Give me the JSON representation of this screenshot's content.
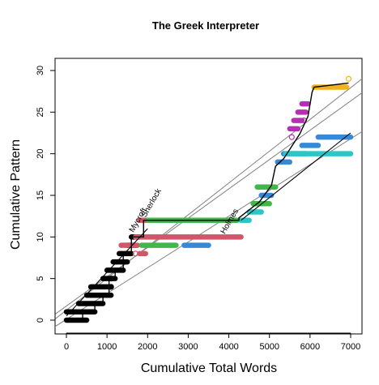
{
  "chart_data": {
    "type": "scatter",
    "title": "The Greek Interpreter",
    "xlabel": "Cumulative Total Words",
    "ylabel": "Cumulative Pattern",
    "xlim": [
      0,
      7000
    ],
    "ylim": [
      0,
      30
    ],
    "xticks": [
      0,
      1000,
      2000,
      3000,
      4000,
      5000,
      6000,
      7000
    ],
    "yticks": [
      0,
      5,
      10,
      15,
      20,
      25,
      30
    ],
    "grid": false,
    "legend": "none",
    "annotations": [
      {
        "text": "Mycroft",
        "x": 1650,
        "y": 10.5
      },
      {
        "text": "Sherlock",
        "x": 1950,
        "y": 12.3
      },
      {
        "text": "Holmes",
        "x": 3900,
        "y": 10.3
      }
    ],
    "series": [
      {
        "color": "#000000",
        "segments": [
          [
            0,
            0,
            500,
            0
          ],
          [
            0,
            1,
            700,
            1
          ],
          [
            300,
            2,
            900,
            2
          ],
          [
            500,
            3,
            1100,
            3
          ],
          [
            600,
            4,
            1100,
            4
          ],
          [
            900,
            5,
            1200,
            5
          ],
          [
            1000,
            6,
            1400,
            6
          ],
          [
            1150,
            7,
            1500,
            7
          ],
          [
            1300,
            8,
            1600,
            8
          ],
          [
            1500,
            9,
            1700,
            9
          ],
          [
            1600,
            10,
            1800,
            10
          ]
        ]
      },
      {
        "color": "#d2566a",
        "segments": [
          [
            1350,
            9,
            1750,
            9
          ],
          [
            1700,
            10,
            4300,
            10
          ],
          [
            1800,
            12,
            2000,
            12
          ],
          [
            1800,
            8,
            1950,
            8
          ]
        ]
      },
      {
        "color": "#41b649",
        "segments": [
          [
            1850,
            9,
            2700,
            9
          ],
          [
            2000,
            12,
            4200,
            12
          ],
          [
            4600,
            14,
            5000,
            14
          ],
          [
            4700,
            16,
            5150,
            16
          ]
        ]
      },
      {
        "color": "#3589d6",
        "segments": [
          [
            2900,
            9,
            3500,
            9
          ],
          [
            4800,
            15,
            5050,
            15
          ],
          [
            5200,
            19,
            5500,
            19
          ],
          [
            5350,
            20,
            5900,
            20
          ],
          [
            5800,
            21,
            6200,
            21
          ],
          [
            6200,
            22,
            7000,
            22
          ]
        ]
      },
      {
        "color": "#2ac7c7",
        "segments": [
          [
            4300,
            12,
            4500,
            12
          ],
          [
            4500,
            13,
            4800,
            13
          ],
          [
            5400,
            20,
            7000,
            20
          ]
        ]
      },
      {
        "color": "#b72fb4",
        "segments": [
          [
            5500,
            23,
            5700,
            23
          ],
          [
            5600,
            24,
            5800,
            24
          ],
          [
            5700,
            25,
            5900,
            25
          ],
          [
            5800,
            26,
            5950,
            26
          ]
        ]
      },
      {
        "color": "#f2b21c",
        "segments": [
          [
            6100,
            28,
            6900,
            28
          ]
        ]
      }
    ],
    "open_points": [
      {
        "x": 1100,
        "y": 4,
        "color": "#000000"
      },
      {
        "x": 1100,
        "y": 5,
        "color": "#000000"
      },
      {
        "x": 1700,
        "y": 8,
        "color": "#d2566a"
      },
      {
        "x": 5550,
        "y": 22,
        "color": "#b72fb4"
      },
      {
        "x": 5850,
        "y": 24,
        "color": "#b72fb4"
      },
      {
        "x": 6950,
        "y": 29,
        "color": "#f2b21c"
      }
    ],
    "step_line": [
      [
        0,
        0
      ],
      [
        400,
        0
      ],
      [
        400,
        1
      ],
      [
        700,
        1
      ],
      [
        700,
        2
      ],
      [
        900,
        2
      ],
      [
        900,
        3
      ],
      [
        1050,
        3
      ],
      [
        1050,
        5
      ],
      [
        1200,
        5
      ],
      [
        1200,
        6
      ],
      [
        1400,
        6
      ],
      [
        1400,
        8
      ],
      [
        1600,
        8
      ],
      [
        1600,
        10
      ],
      [
        1900,
        10
      ],
      [
        1900,
        12
      ],
      [
        4250,
        12
      ],
      [
        4250,
        12.3
      ],
      [
        4750,
        14.2
      ],
      [
        5050,
        16.2
      ],
      [
        5150,
        18.5
      ],
      [
        5350,
        19.4
      ],
      [
        5750,
        22.4
      ],
      [
        5950,
        24.5
      ],
      [
        6050,
        27.4
      ],
      [
        6100,
        28
      ],
      [
        6950,
        28.5
      ]
    ],
    "post_fit_line": [
      [
        4300,
        12
      ],
      [
        7000,
        22.5
      ]
    ],
    "pre_fit_line": [
      [
        0,
        0.5
      ],
      [
        2000,
        11
      ]
    ],
    "regression_lines": [
      {
        "intercept": 1.7,
        "slope": 0.00352,
        "color": "#808080"
      },
      {
        "intercept": 1.2,
        "slope": 0.00382,
        "color": "#808080"
      },
      {
        "intercept": 0.1,
        "slope": 0.0031,
        "color": "#808080"
      }
    ]
  }
}
